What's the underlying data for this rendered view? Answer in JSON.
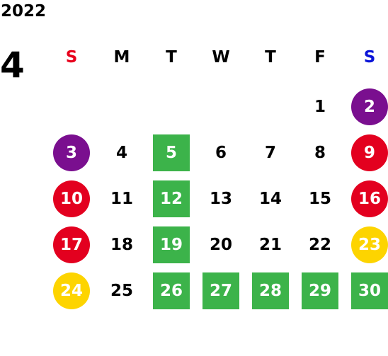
{
  "calendar": {
    "year": "2022",
    "month": "4",
    "weekdays": [
      {
        "label": "S",
        "color": "#e8001c"
      },
      {
        "label": "M",
        "color": "#000000"
      },
      {
        "label": "T",
        "color": "#000000"
      },
      {
        "label": "W",
        "color": "#000000"
      },
      {
        "label": "T",
        "color": "#000000"
      },
      {
        "label": "F",
        "color": "#000000"
      },
      {
        "label": "S",
        "color": "#0a14d8"
      }
    ],
    "start_weekday_index": 5,
    "days": [
      {
        "label": "1"
      },
      {
        "label": "2",
        "style": "circle",
        "color": "#7a0f8f"
      },
      {
        "label": "3",
        "style": "circle",
        "color": "#7a0f8f"
      },
      {
        "label": "4"
      },
      {
        "label": "5",
        "style": "square",
        "color": "#3cb34a"
      },
      {
        "label": "6"
      },
      {
        "label": "7"
      },
      {
        "label": "8"
      },
      {
        "label": "9",
        "style": "circle",
        "color": "#e3001f"
      },
      {
        "label": "10",
        "style": "circle",
        "color": "#e3001f"
      },
      {
        "label": "11"
      },
      {
        "label": "12",
        "style": "square",
        "color": "#3cb34a"
      },
      {
        "label": "13"
      },
      {
        "label": "14"
      },
      {
        "label": "15"
      },
      {
        "label": "16",
        "style": "circle",
        "color": "#e3001f"
      },
      {
        "label": "17",
        "style": "circle",
        "color": "#e3001f"
      },
      {
        "label": "18"
      },
      {
        "label": "19",
        "style": "square",
        "color": "#3cb34a"
      },
      {
        "label": "20"
      },
      {
        "label": "21"
      },
      {
        "label": "22"
      },
      {
        "label": "23",
        "style": "circle",
        "color": "#fdd400"
      },
      {
        "label": "24",
        "style": "circle",
        "color": "#fdd400"
      },
      {
        "label": "25"
      },
      {
        "label": "26",
        "style": "square",
        "color": "#3cb34a"
      },
      {
        "label": "27",
        "style": "square",
        "color": "#3cb34a"
      },
      {
        "label": "28",
        "style": "square",
        "color": "#3cb34a"
      },
      {
        "label": "29",
        "style": "square",
        "color": "#3cb34a"
      },
      {
        "label": "30",
        "style": "square",
        "color": "#3cb34a"
      }
    ]
  }
}
